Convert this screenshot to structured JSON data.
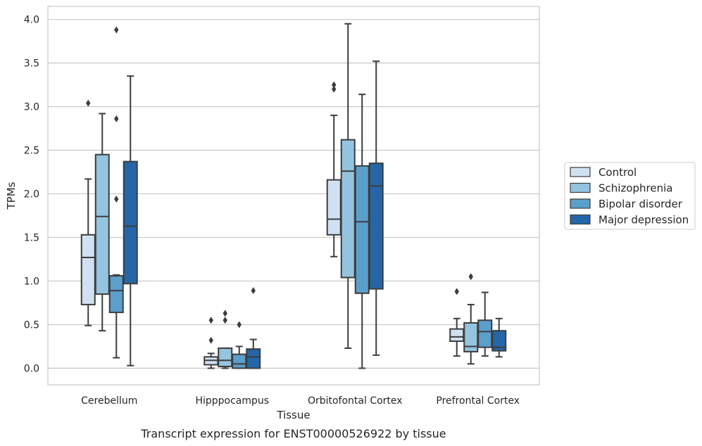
{
  "caption": "Transcript expression for ENST00000526922 by tissue",
  "chart_data": {
    "type": "box",
    "title": "",
    "xlabel": "Tissue",
    "ylabel": "TPMs",
    "ylim": [
      -0.19,
      4.15
    ],
    "yticks": [
      "0.0",
      "0.5",
      "1.0",
      "1.5",
      "2.0",
      "2.5",
      "3.0",
      "3.5",
      "4.0"
    ],
    "grid": "horizontal",
    "legend_position": "right",
    "categories": [
      "Cerebellum",
      "Hipppocampus",
      "Orbitofontal Cortex",
      "Prefrontal Cortex"
    ],
    "series": [
      {
        "name": "Control",
        "color": "#d0e1f2",
        "boxes": [
          {
            "whisker_low": 0.49,
            "q1": 0.73,
            "median": 1.27,
            "q3": 1.53,
            "whisker_high": 2.17,
            "outliers": [
              3.04
            ]
          },
          {
            "whisker_low": 0.0,
            "q1": 0.04,
            "median": 0.09,
            "q3": 0.13,
            "whisker_high": 0.17,
            "outliers": [
              0.32,
              0.55
            ]
          },
          {
            "whisker_low": 1.28,
            "q1": 1.53,
            "median": 1.71,
            "q3": 2.16,
            "whisker_high": 2.9,
            "outliers": [
              3.2,
              3.25
            ]
          },
          {
            "whisker_low": 0.14,
            "q1": 0.31,
            "median": 0.36,
            "q3": 0.45,
            "whisker_high": 0.57,
            "outliers": [
              0.88
            ]
          }
        ]
      },
      {
        "name": "Schizophrenia",
        "color": "#94c4df",
        "boxes": [
          {
            "whisker_low": 0.43,
            "q1": 0.85,
            "median": 1.74,
            "q3": 2.45,
            "whisker_high": 2.92,
            "outliers": []
          },
          {
            "whisker_low": 0.0,
            "q1": 0.02,
            "median": 0.09,
            "q3": 0.23,
            "whisker_high": 0.23,
            "outliers": [
              0.55,
              0.63
            ]
          },
          {
            "whisker_low": 0.23,
            "q1": 1.04,
            "median": 2.26,
            "q3": 2.62,
            "whisker_high": 3.95,
            "outliers": []
          },
          {
            "whisker_low": 0.05,
            "q1": 0.19,
            "median": 0.25,
            "q3": 0.52,
            "whisker_high": 0.73,
            "outliers": [
              1.05
            ]
          }
        ]
      },
      {
        "name": "Bipolar disorder",
        "color": "#5b9fcc",
        "boxes": [
          {
            "whisker_low": 0.12,
            "q1": 0.64,
            "median": 0.89,
            "q3": 1.06,
            "whisker_high": 1.07,
            "outliers": [
              1.94,
              2.86,
              3.88
            ]
          },
          {
            "whisker_low": 0.0,
            "q1": 0.0,
            "median": 0.05,
            "q3": 0.16,
            "whisker_high": 0.25,
            "outliers": [
              0.5
            ]
          },
          {
            "whisker_low": 0.0,
            "q1": 0.86,
            "median": 1.68,
            "q3": 2.32,
            "whisker_high": 3.14,
            "outliers": []
          },
          {
            "whisker_low": 0.14,
            "q1": 0.24,
            "median": 0.42,
            "q3": 0.55,
            "whisker_high": 0.87,
            "outliers": []
          }
        ]
      },
      {
        "name": "Major depression",
        "color": "#2466a8",
        "boxes": [
          {
            "whisker_low": 0.03,
            "q1": 0.97,
            "median": 1.63,
            "q3": 2.37,
            "whisker_high": 3.35,
            "outliers": []
          },
          {
            "whisker_low": 0.0,
            "q1": 0.0,
            "median": 0.13,
            "q3": 0.22,
            "whisker_high": 0.33,
            "outliers": [
              0.89
            ]
          },
          {
            "whisker_low": 0.15,
            "q1": 0.91,
            "median": 2.09,
            "q3": 2.35,
            "whisker_high": 3.52,
            "outliers": []
          },
          {
            "whisker_low": 0.13,
            "q1": 0.2,
            "median": 0.24,
            "q3": 0.43,
            "whisker_high": 0.57,
            "outliers": []
          }
        ]
      }
    ]
  }
}
